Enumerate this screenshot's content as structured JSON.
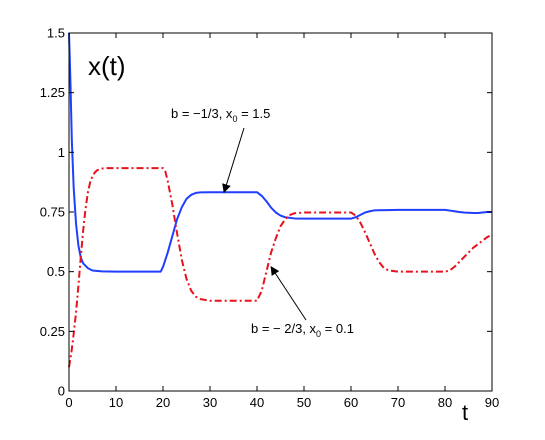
{
  "chart_data": {
    "type": "line",
    "title": "",
    "ylabel_inplot": "x(t)",
    "xlabel": "t",
    "xlim": [
      0,
      90
    ],
    "ylim": [
      0,
      1.5
    ],
    "xticks": [
      0,
      10,
      20,
      30,
      40,
      50,
      60,
      70,
      80,
      90
    ],
    "xtick_labels": [
      "0",
      "10",
      "20",
      "30",
      "40",
      "50",
      "60",
      "70",
      "80",
      "90"
    ],
    "yticks": [
      0,
      0.25,
      0.5,
      0.75,
      1,
      1.25,
      1.5
    ],
    "ytick_labels": [
      "0",
      "0.25",
      "0.5",
      "0.75",
      "1",
      "1.25",
      "1.5"
    ],
    "grid": false,
    "series": [
      {
        "name": "",
        "color": "#1f3fff",
        "style": "solid",
        "x": [
          0,
          0.3,
          0.6,
          1,
          1.5,
          2,
          2.5,
          3,
          4,
          5,
          7,
          10,
          15,
          19.5,
          20,
          21,
          22,
          23,
          24,
          25,
          26,
          27,
          28,
          30,
          35,
          40,
          41,
          42,
          43,
          44,
          45,
          46,
          48,
          50,
          55,
          60,
          61,
          62,
          63,
          64,
          65,
          70,
          75,
          80,
          81,
          82,
          83,
          84,
          85,
          86,
          87,
          88,
          89,
          90
        ],
        "y": [
          1.5,
          1.3,
          1.05,
          0.85,
          0.7,
          0.61,
          0.56,
          0.535,
          0.515,
          0.505,
          0.501,
          0.5,
          0.5,
          0.5,
          0.52,
          0.58,
          0.65,
          0.72,
          0.77,
          0.805,
          0.822,
          0.83,
          0.832,
          0.833,
          0.833,
          0.833,
          0.818,
          0.795,
          0.768,
          0.748,
          0.735,
          0.728,
          0.723,
          0.722,
          0.722,
          0.722,
          0.728,
          0.738,
          0.748,
          0.753,
          0.757,
          0.759,
          0.759,
          0.759,
          0.756,
          0.753,
          0.75,
          0.748,
          0.747,
          0.746,
          0.746,
          0.748,
          0.75,
          0.75
        ]
      },
      {
        "name": "",
        "color": "#e8121c",
        "style": "dashdot",
        "x": [
          0,
          0.5,
          1,
          1.5,
          2,
          2.5,
          3,
          3.5,
          4,
          4.5,
          5,
          5.5,
          6,
          7,
          8,
          10,
          15,
          20,
          20.5,
          21,
          22,
          23,
          24,
          25,
          26,
          27,
          28,
          30,
          35,
          40,
          41,
          42,
          43,
          44,
          45,
          46,
          47,
          48,
          50,
          55,
          60,
          61,
          62,
          63,
          64,
          65,
          66,
          67,
          68,
          70,
          75,
          80,
          81,
          82,
          83,
          84,
          85,
          86,
          87,
          88,
          89,
          90
        ],
        "y": [
          0.1,
          0.16,
          0.24,
          0.33,
          0.44,
          0.56,
          0.67,
          0.76,
          0.83,
          0.875,
          0.9,
          0.916,
          0.925,
          0.932,
          0.934,
          0.934,
          0.934,
          0.934,
          0.92,
          0.88,
          0.78,
          0.66,
          0.55,
          0.47,
          0.42,
          0.395,
          0.385,
          0.378,
          0.378,
          0.378,
          0.42,
          0.5,
          0.58,
          0.64,
          0.69,
          0.72,
          0.737,
          0.745,
          0.748,
          0.748,
          0.748,
          0.735,
          0.705,
          0.665,
          0.62,
          0.575,
          0.54,
          0.515,
          0.505,
          0.5,
          0.5,
          0.5,
          0.505,
          0.52,
          0.54,
          0.56,
          0.58,
          0.6,
          0.615,
          0.63,
          0.645,
          0.655
        ]
      }
    ],
    "annotations": [
      {
        "id": "ann-blue",
        "text_main": "b = −1/3, x",
        "text_sub": "0",
        "text_tail": " = 1.5",
        "arrow_to": [
          33,
          0.833
        ]
      },
      {
        "id": "ann-red",
        "text_main": "b = − 2/3, x",
        "text_sub": "0",
        "text_tail": " = 0.1",
        "arrow_to": [
          43,
          0.52
        ]
      }
    ]
  }
}
